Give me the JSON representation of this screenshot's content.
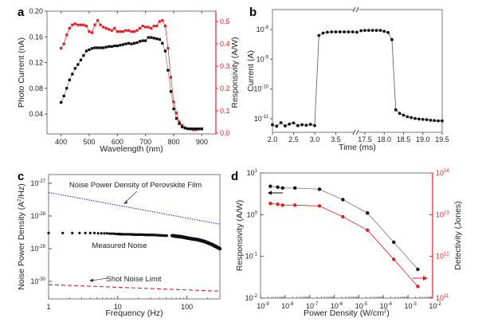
{
  "chart_data": [
    {
      "panel": "a",
      "type": "line",
      "title": "",
      "xlabel": "Wavelength (nm)",
      "ylabel": "Photo Current (nA)",
      "ylabel_right": "Responsivity (A/W)",
      "xlim": [
        350,
        950
      ],
      "ylim": [
        0.02,
        0.2
      ],
      "ylim_right": [
        0.0,
        0.55
      ],
      "xticks": [
        "400",
        "500",
        "600",
        "700",
        "800",
        "900"
      ],
      "yticks": [
        "0.04",
        "0.08",
        "0.12",
        "0.16",
        "0.20"
      ],
      "yticks_right": [
        "0.0",
        "0.1",
        "0.2",
        "0.3",
        "0.4",
        "0.5"
      ],
      "x": [
        400,
        410,
        420,
        430,
        440,
        450,
        460,
        470,
        480,
        490,
        500,
        510,
        520,
        530,
        540,
        550,
        560,
        570,
        580,
        590,
        600,
        610,
        620,
        630,
        640,
        650,
        660,
        670,
        680,
        690,
        700,
        710,
        720,
        730,
        740,
        750,
        760,
        770,
        780,
        790,
        800,
        810,
        820,
        830,
        840,
        850,
        860,
        870,
        880,
        890,
        900
      ],
      "series": [
        {
          "name": "Photo Current",
          "axis": "left",
          "color": "#000000",
          "marker": "square",
          "values": [
            0.058,
            0.068,
            0.08,
            0.093,
            0.102,
            0.111,
            0.117,
            0.124,
            0.131,
            0.138,
            0.14,
            0.142,
            0.143,
            0.143,
            0.143,
            0.143,
            0.144,
            0.145,
            0.145,
            0.146,
            0.146,
            0.147,
            0.148,
            0.149,
            0.15,
            0.149,
            0.15,
            0.151,
            0.153,
            0.154,
            0.154,
            0.159,
            0.159,
            0.158,
            0.157,
            0.156,
            0.15,
            0.138,
            0.108,
            0.075,
            0.048,
            0.033,
            0.025,
            0.02,
            0.018,
            0.017,
            0.017,
            0.017,
            0.017,
            0.017,
            0.017
          ]
        },
        {
          "name": "Responsivity",
          "axis": "right",
          "color": "#e02020",
          "marker": "square",
          "values": [
            0.38,
            0.4,
            0.44,
            0.47,
            0.485,
            0.49,
            0.485,
            0.485,
            0.485,
            0.48,
            0.455,
            0.45,
            0.485,
            0.505,
            0.485,
            0.475,
            0.47,
            0.465,
            0.46,
            0.47,
            0.455,
            0.455,
            0.455,
            0.46,
            0.46,
            0.455,
            0.455,
            0.46,
            0.47,
            0.48,
            0.475,
            0.475,
            0.47,
            0.48,
            0.48,
            0.5,
            0.505,
            0.48,
            0.38,
            0.25,
            0.14,
            0.09,
            0.05,
            0.035,
            0.025,
            0.02,
            0.018,
            0.015,
            0.015,
            0.018,
            0.018
          ]
        }
      ]
    },
    {
      "panel": "b",
      "type": "line",
      "title": "",
      "xlabel": "Time (ms)",
      "ylabel": "Current (A)",
      "yscale": "log",
      "ylim_exp": [
        -11.45,
        -7.4
      ],
      "axis_break": "between 3.5 and 17.5 ms",
      "xticks": [
        "2.0",
        "2.5",
        "3.0",
        "3.5",
        "17.5",
        "18.0",
        "18.5",
        "19.0",
        "19.5"
      ],
      "yticks": [
        "10^-11",
        "10^-10",
        "10^-9",
        "10^-8"
      ],
      "series": [
        {
          "name": "Current",
          "color": "#000000",
          "marker": "circle",
          "segments": [
            {
              "x": [
                2.0,
                2.1,
                2.2,
                2.3,
                2.4,
                2.5,
                2.6,
                2.7,
                2.8,
                2.9,
                3.0,
                3.1,
                3.2,
                3.3,
                3.4,
                3.5,
                3.6,
                3.7,
                3.8,
                3.9,
                4.0
              ],
              "log10_values": [
                -11.2,
                -11.25,
                -11.13,
                -11.24,
                -11.18,
                -11.14,
                -11.23,
                -11.2,
                -11.22,
                -11.19,
                -11.23,
                -8.2,
                -8.12,
                -8.09,
                -8.08,
                -8.08,
                -8.08,
                -8.08,
                -8.08,
                -8.08,
                -8.09
              ]
            },
            {
              "x": [
                17.4,
                17.5,
                17.6,
                17.7,
                17.8,
                17.9,
                18.0,
                18.1,
                18.2,
                18.3,
                18.4,
                18.5,
                18.6,
                18.7,
                18.8,
                18.9,
                19.0,
                19.1,
                19.2,
                19.3,
                19.4,
                19.5
              ],
              "log10_values": [
                -8.04,
                -8.03,
                -8.03,
                -8.03,
                -8.03,
                -8.03,
                -8.06,
                -8.1,
                -8.34,
                -10.7,
                -10.82,
                -10.88,
                -10.93,
                -10.96,
                -10.99,
                -11.01,
                -11.02,
                -11.03,
                -11.05,
                -11.06,
                -11.07,
                -11.07
              ]
            }
          ]
        }
      ]
    },
    {
      "panel": "c",
      "type": "line",
      "title": "",
      "xlabel": "Frequency (Hz)",
      "ylabel": "Noise Power Density (A^2/Hz)",
      "xscale": "log",
      "yscale": "log",
      "xlim": [
        1,
        300
      ],
      "ylim_exp": [
        -30.55,
        -26.7
      ],
      "xticks": [
        "1",
        "10",
        "100"
      ],
      "yticks": [
        "10^-27",
        "10^-28",
        "10^-29",
        "10^-30"
      ],
      "series": [
        {
          "name": "Noise Power Density of Perovskite Film",
          "color": "#2a2ad0",
          "style": "dotted",
          "x": [
            1,
            300
          ],
          "log10_values": [
            -27.28,
            -28.25
          ]
        },
        {
          "name": "Measured Noise",
          "color": "#000000",
          "marker": "circle",
          "x": [
            1,
            1.6,
            2.2,
            2.8,
            3.4,
            4,
            4.6,
            5.2,
            5.8,
            6.4,
            7,
            7.6,
            8.2,
            8.8,
            9.4,
            10,
            12,
            15,
            18,
            22,
            27,
            33,
            40,
            48,
            55,
            62,
            70,
            80,
            90,
            100,
            120,
            140,
            160,
            180,
            200,
            230,
            260,
            300
          ],
          "log10_values": [
            -28.52,
            -28.52,
            -28.52,
            -28.52,
            -28.52,
            -28.52,
            -28.52,
            -28.53,
            -28.53,
            -28.53,
            -28.53,
            -28.54,
            -28.54,
            -28.54,
            -28.55,
            -28.55,
            -28.56,
            -28.56,
            -28.57,
            -28.57,
            -28.58,
            -28.58,
            -28.59,
            -28.6,
            -28.6,
            -28.6,
            -28.62,
            -28.63,
            -28.65,
            -28.67,
            -28.7,
            -28.72,
            -28.75,
            -28.78,
            -28.82,
            -28.87,
            -28.93,
            -29.0
          ]
        },
        {
          "name": "Shot Noise Limit",
          "color": "#e02020",
          "style": "dashed",
          "x": [
            1,
            300
          ],
          "log10_values": [
            -30.1,
            -30.3
          ]
        }
      ],
      "annotations": [
        "Noise Power Density of Perovskite Film",
        "Measured Noise",
        "Shot Noise Limit"
      ]
    },
    {
      "panel": "d",
      "type": "line",
      "title": "",
      "xlabel": "Power Density (W/cm^2)",
      "ylabel": "Responsivity (A/W)",
      "ylabel_right": "Detectivity (Jones)",
      "xscale": "log",
      "yscale": "log",
      "xlim_exp": [
        -9,
        -2
      ],
      "ylim_exp": [
        -2,
        1
      ],
      "ylim_right_exp": [
        11,
        14
      ],
      "xticks": [
        "10^-9",
        "10^-8",
        "10^-7",
        "10^-6",
        "10^-5",
        "10^-4",
        "10^-3",
        "10^-2"
      ],
      "yticks": [
        "10^-2",
        "10^-1",
        "10^0",
        "10^1"
      ],
      "yticks_right": [
        "10^11",
        "10^12",
        "10^13",
        "10^14"
      ],
      "series": [
        {
          "name": "Responsivity",
          "axis": "left",
          "color": "#000000",
          "marker": "circle",
          "log10_x": [
            -8.6,
            -8.3,
            -8.1,
            -7.6,
            -6.6,
            -5.65,
            -4.65,
            -3.58,
            -2.6
          ],
          "log10_values": [
            0.68,
            0.66,
            0.64,
            0.64,
            0.61,
            0.36,
            0.04,
            -0.66,
            -1.31
          ]
        },
        {
          "name": "Detectivity",
          "axis": "right",
          "color": "#e02020",
          "marker": "circle",
          "log10_x": [
            -8.6,
            -8.3,
            -8.1,
            -7.6,
            -6.6,
            -5.65,
            -4.65,
            -3.58,
            -2.6
          ],
          "log10_values": [
            13.27,
            13.25,
            13.23,
            13.23,
            13.21,
            12.95,
            12.63,
            11.93,
            11.28
          ]
        }
      ],
      "annotations": [
        "left-arrow: black (Responsivity axis)",
        "right-arrow: red (Detectivity axis)"
      ]
    }
  ]
}
